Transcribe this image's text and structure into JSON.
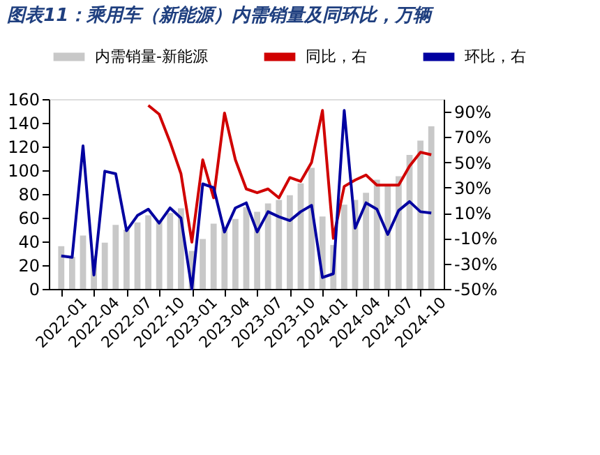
{
  "chart_data": {
    "type": "bar",
    "title": "图表11：乘用车（新能源）内需销量及同环比，万辆",
    "categories": [
      "2022-01",
      null,
      null,
      "2022-04",
      null,
      null,
      "2022-07",
      null,
      null,
      "2022-10",
      null,
      null,
      "2023-01",
      null,
      null,
      "2023-04",
      null,
      null,
      "2023-07",
      null,
      null,
      "2023-10",
      null,
      null,
      "2024-01",
      null,
      null,
      "2024-04",
      null,
      null,
      "2024-07",
      null,
      null,
      "2024-10",
      null
    ],
    "series": [
      {
        "name": "内需销量-新能源",
        "color": "#c8c8c8",
        "values": [
          36,
          27,
          45,
          28,
          39,
          54,
          50,
          56,
          62,
          58,
          64,
          68,
          32,
          42,
          55,
          52,
          59,
          69,
          65,
          72,
          75,
          79,
          89,
          102,
          61,
          37,
          71,
          75,
          81,
          92,
          87,
          95,
          113,
          125,
          137
        ]
      },
      {
        "name": "同比，右",
        "type": "line",
        "axis": "y2",
        "color": "#d00000",
        "values": [
          null,
          null,
          null,
          null,
          null,
          null,
          null,
          null,
          95,
          88,
          66,
          41,
          -13,
          52,
          22,
          89,
          52,
          29,
          26,
          29,
          22,
          38,
          35,
          50,
          91,
          -10,
          31,
          36,
          40,
          32,
          32,
          32,
          47,
          58,
          56
        ]
      },
      {
        "name": "环比，右",
        "type": "line",
        "axis": "y2",
        "color": "#0000a0",
        "values": [
          -24,
          -25,
          63,
          -39,
          43,
          41,
          -4,
          8,
          13,
          2,
          14,
          6,
          -50,
          33,
          30,
          -5,
          14,
          18,
          -5,
          11,
          7,
          4,
          11,
          16,
          -41,
          -38,
          91,
          -2,
          18,
          13,
          -7,
          12,
          19,
          11,
          10
        ]
      }
    ],
    "ylim": [
      0,
      160
    ],
    "yticks": [
      0,
      20,
      40,
      60,
      80,
      100,
      120,
      140,
      160
    ],
    "y2lim": [
      -50,
      100
    ],
    "y2ticks": [
      {
        "value": -50,
        "label": "-50%"
      },
      {
        "value": -30,
        "label": "-30%"
      },
      {
        "value": -10,
        "label": "-10%"
      },
      {
        "value": 10,
        "label": "10%"
      },
      {
        "value": 30,
        "label": "30%"
      },
      {
        "value": 50,
        "label": "50%"
      },
      {
        "value": 70,
        "label": "70%"
      },
      {
        "value": 90,
        "label": "90%"
      }
    ],
    "legend": "top",
    "grid": false
  }
}
